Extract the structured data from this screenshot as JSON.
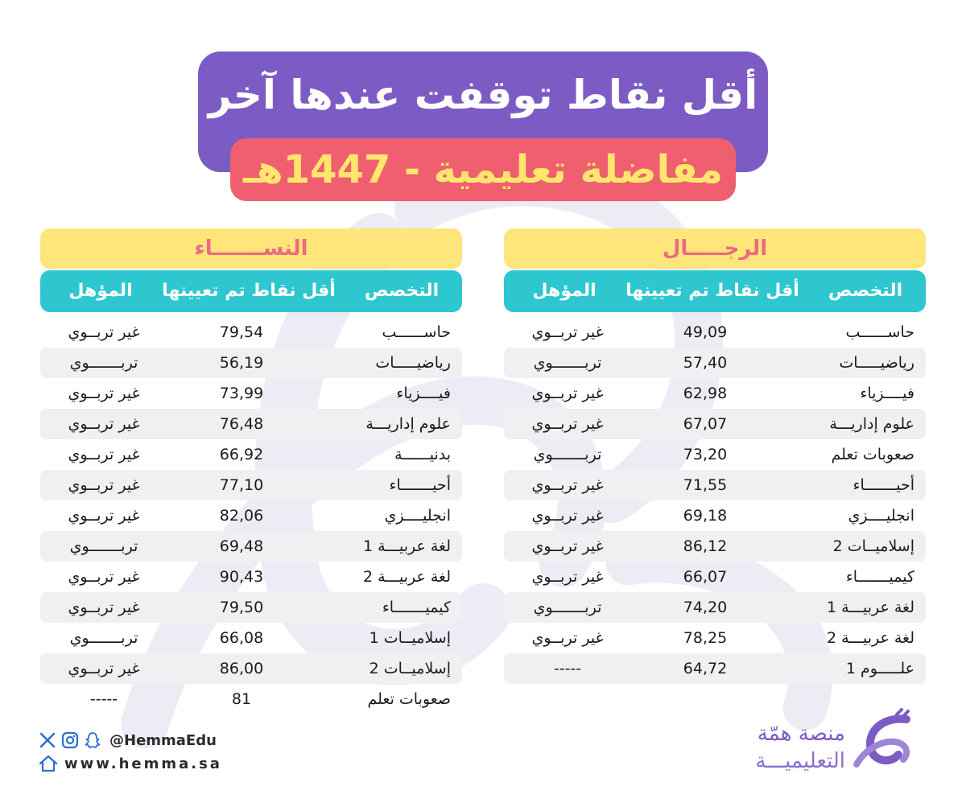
{
  "header": {
    "line1": "أقل نقاط توقفت عندها آخر",
    "line2": "مفاضلة تعليمية - 1447هـ"
  },
  "columns": {
    "specialty": "التخصص",
    "min_points": "أقل نقاط تم تعيينها",
    "qualification": "المؤهل"
  },
  "men": {
    "title": "الرجـــــال",
    "rows": [
      {
        "specialty": "حاســــــب",
        "score": "49,09",
        "qualification": "غير تربــوي"
      },
      {
        "specialty": "رياضيـــــات",
        "score": "57,40",
        "qualification": "تربـــــــوي"
      },
      {
        "specialty": "فيــــزياء",
        "score": "62,98",
        "qualification": "غير تربــوي"
      },
      {
        "specialty": "علوم إداريـــة",
        "score": "67,07",
        "qualification": "غير تربــوي"
      },
      {
        "specialty": "صعوبات تعلم",
        "score": "73,20",
        "qualification": "تربـــــــوي"
      },
      {
        "specialty": "أحيـــــــاء",
        "score": "71,55",
        "qualification": "غير تربــوي"
      },
      {
        "specialty": "انجليــــزي",
        "score": "69,18",
        "qualification": "غير تربــوي"
      },
      {
        "specialty": "إسلاميــات 2",
        "score": "86,12",
        "qualification": "غير تربــوي"
      },
      {
        "specialty": "كيميـــــــاء",
        "score": "66,07",
        "qualification": "غير تربــوي"
      },
      {
        "specialty": "لغة عربيـــة 1",
        "score": "74,20",
        "qualification": "تربـــــــوي"
      },
      {
        "specialty": "لغة عربيـــة 2",
        "score": "78,25",
        "qualification": "غير تربــوي"
      },
      {
        "specialty": "علـــــوم 1",
        "score": "64,72",
        "qualification": "-----"
      }
    ]
  },
  "women": {
    "title": "النســـــــاء",
    "rows": [
      {
        "specialty": "حاســــــب",
        "score": "79,54",
        "qualification": "غير تربــوي"
      },
      {
        "specialty": "رياضيـــــات",
        "score": "56,19",
        "qualification": "تربـــــــوي"
      },
      {
        "specialty": "فيــــزياء",
        "score": "73,99",
        "qualification": "غير تربــوي"
      },
      {
        "specialty": "علوم إداريـــة",
        "score": "76,48",
        "qualification": "غير تربــوي"
      },
      {
        "specialty": "بدنيــــــة",
        "score": "66,92",
        "qualification": "غير تربــوي"
      },
      {
        "specialty": "أحيـــــــاء",
        "score": "77,10",
        "qualification": "غير تربــوي"
      },
      {
        "specialty": "انجليــــزي",
        "score": "82,06",
        "qualification": "غير تربــوي"
      },
      {
        "specialty": "لغة عربيـــة 1",
        "score": "69,48",
        "qualification": "تربـــــــوي"
      },
      {
        "specialty": "لغة عربيـــة 2",
        "score": "90,43",
        "qualification": "غير تربــوي"
      },
      {
        "specialty": "كيميـــــــاء",
        "score": "79,50",
        "qualification": "غير تربــوي"
      },
      {
        "specialty": "إسلاميــات 1",
        "score": "66,08",
        "qualification": "تربـــــــوي"
      },
      {
        "specialty": "إسلاميــات 2",
        "score": "86,00",
        "qualification": "غير تربــوي"
      },
      {
        "specialty": "صعوبات تعلم",
        "score": "81",
        "qualification": "-----"
      }
    ]
  },
  "footer": {
    "handle": "@HemmaEdu",
    "website": "www.hemma.sa",
    "brand_line1": "منصة همّة",
    "brand_line2": "التعليميـــة",
    "icons": [
      "x-icon",
      "instagram-icon",
      "snapchat-icon",
      "home-icon"
    ]
  },
  "colors": {
    "purple": "#7c5cc4",
    "coral": "#f05f70",
    "yellow": "#ffe66d",
    "teal": "#2ec7cf",
    "pink_text": "#ec6a82",
    "row_alt": "#f0f0f3"
  }
}
